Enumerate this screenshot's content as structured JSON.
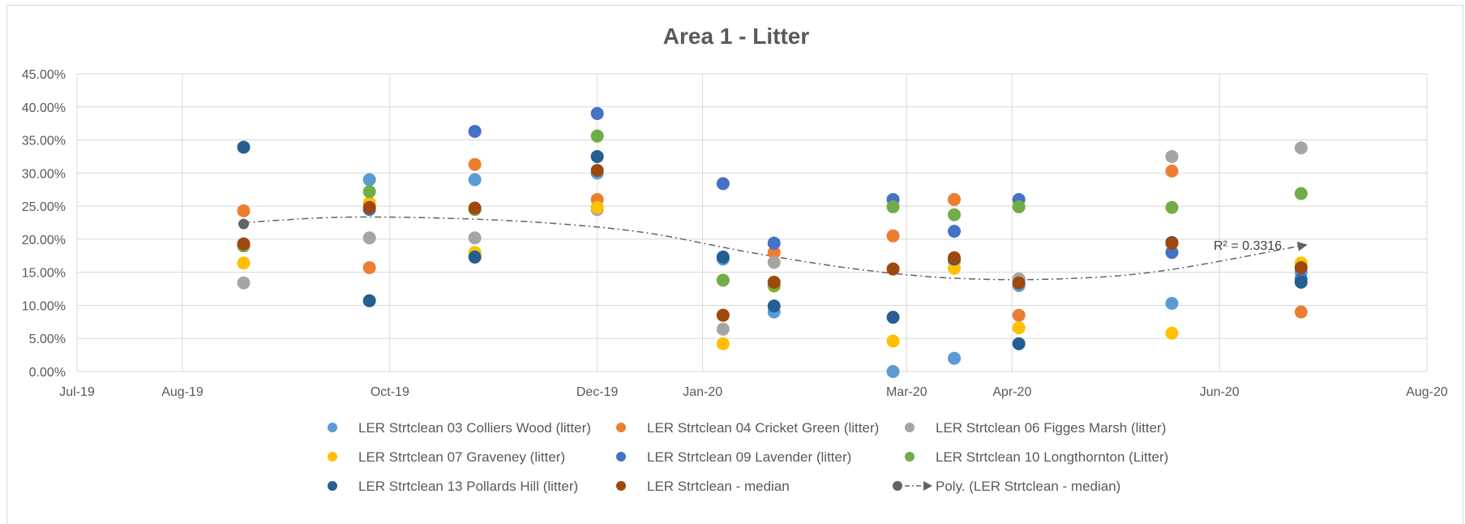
{
  "chart_data": {
    "type": "scatter",
    "title": "Area 1 - Litter",
    "xlabel": "",
    "ylabel": "",
    "x_ticks": [
      "Jul-19",
      "Aug-19",
      "Oct-19",
      "Dec-19",
      "Jan-20",
      "Mar-20",
      "Apr-20",
      "Jun-20",
      "Aug-20"
    ],
    "x_tick_dates": [
      "2019-07-01",
      "2019-08-01",
      "2019-10-01",
      "2019-12-01",
      "2020-01-01",
      "2020-03-01",
      "2020-04-01",
      "2020-06-01",
      "2020-08-01"
    ],
    "y_ticks": [
      "0.00%",
      "5.00%",
      "10.00%",
      "15.00%",
      "20.00%",
      "25.00%",
      "30.00%",
      "35.00%",
      "40.00%",
      "45.00%"
    ],
    "ylim": [
      0,
      0.45
    ],
    "xlim": [
      "2019-07-01",
      "2020-08-01"
    ],
    "grid": true,
    "legend_position": "bottom",
    "x": [
      "2019-08-19",
      "2019-09-25",
      "2019-10-26",
      "2019-12-01",
      "2020-01-07",
      "2020-01-22",
      "2020-02-26",
      "2020-03-15",
      "2020-04-03",
      "2020-05-18",
      "2020-06-25"
    ],
    "series": [
      {
        "name": "LER Strtclean 03 Colliers Wood (litter)",
        "color": "#5b9bd5",
        "values": [
          0.19,
          0.29,
          0.29,
          0.3,
          0.17,
          0.09,
          0.0,
          0.02,
          0.13,
          0.103,
          0.15
        ]
      },
      {
        "name": "LER Strtclean 04 Cricket Green (litter)",
        "color": "#ed7d31",
        "values": [
          0.243,
          0.157,
          0.313,
          0.26,
          0.085,
          0.18,
          0.205,
          0.26,
          0.085,
          0.303,
          0.09
        ]
      },
      {
        "name": "LER Strtclean 06 Figges Marsh (litter)",
        "color": "#a5a5a5",
        "values": [
          0.134,
          0.202,
          0.202,
          0.245,
          0.064,
          0.165,
          0.155,
          0.167,
          0.14,
          0.325,
          0.338
        ]
      },
      {
        "name": "LER Strtclean 07 Graveney (litter)",
        "color": "#ffc000",
        "values": [
          0.164,
          0.255,
          0.18,
          0.248,
          0.042,
          0.129,
          0.046,
          0.156,
          0.066,
          0.058,
          0.164
        ]
      },
      {
        "name": "LER Strtclean 09 Lavender (litter)",
        "color": "#4472c4",
        "values": [
          0.19,
          0.245,
          0.363,
          0.39,
          0.284,
          0.194,
          0.26,
          0.212,
          0.26,
          0.18,
          0.14
        ]
      },
      {
        "name": "LER Strtclean 10 Longthornton (Litter)",
        "color": "#70ad47",
        "values": [
          0.19,
          0.272,
          0.245,
          0.356,
          0.138,
          0.13,
          0.249,
          0.237,
          0.249,
          0.248,
          0.269
        ]
      },
      {
        "name": "LER Strtclean 13 Pollards Hill (litter)",
        "color": "#255e91",
        "values": [
          0.339,
          0.107,
          0.173,
          0.325,
          0.173,
          0.099,
          0.082,
          0.17,
          0.042,
          0.195,
          0.135
        ]
      },
      {
        "name": "LER Strtclean - median",
        "color": "#9e480e",
        "values": [
          0.193,
          0.248,
          0.247,
          0.304,
          0.085,
          0.135,
          0.155,
          0.172,
          0.134,
          0.194,
          0.157
        ]
      }
    ],
    "trendline": {
      "name": "Poly. (LER Strtclean - median)",
      "color": "#636363",
      "type": "polynomial",
      "r_squared_label": "R² = 0.3316",
      "start_marker": {
        "x": "2019-08-19",
        "y": 0.223
      },
      "x": [
        "2019-08-19",
        "2019-09-15",
        "2019-10-15",
        "2019-11-15",
        "2019-12-15",
        "2020-01-15",
        "2020-02-15",
        "2020-03-15",
        "2020-04-15",
        "2020-05-15",
        "2020-06-25"
      ],
      "values": [
        0.225,
        0.233,
        0.232,
        0.225,
        0.21,
        0.18,
        0.155,
        0.141,
        0.14,
        0.152,
        0.19
      ]
    }
  }
}
